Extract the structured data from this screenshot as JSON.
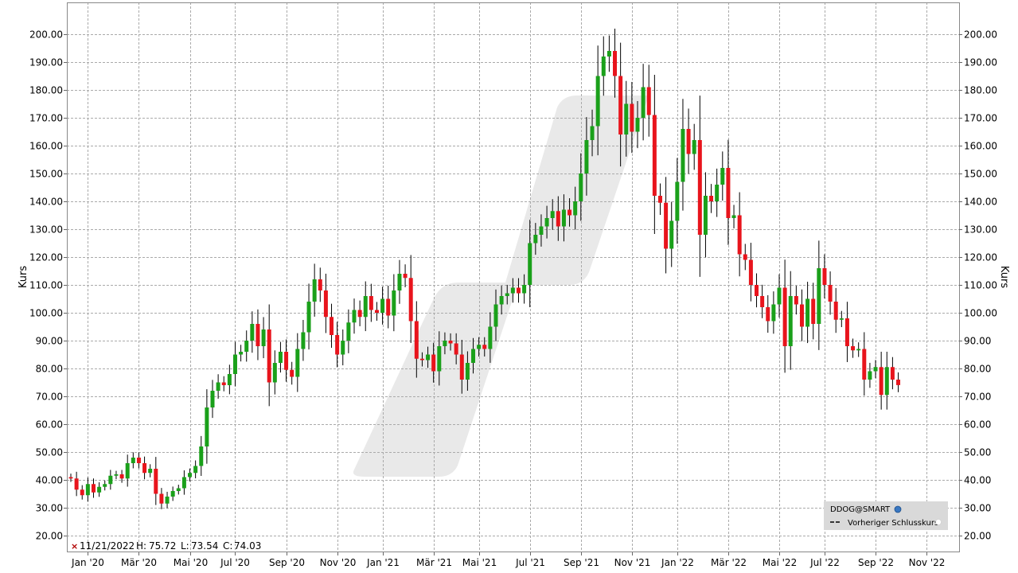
{
  "chart_data": {
    "type": "candlestick",
    "ylabel": "Kurs",
    "ylim": [
      15,
      205
    ],
    "y_ticks": [
      "20.00",
      "30.00",
      "40.00",
      "50.00",
      "60.00",
      "70.00",
      "80.00",
      "90.00",
      "100.00",
      "110.00",
      "120.00",
      "130.00",
      "140.00",
      "150.00",
      "160.00",
      "170.00",
      "180.00",
      "190.00",
      "200.00"
    ],
    "x_ticks": [
      {
        "label": "Jan '20",
        "week": 3
      },
      {
        "label": "Mär '20",
        "week": 12
      },
      {
        "label": "Mai '20",
        "week": 21
      },
      {
        "label": "Jul '20",
        "week": 29
      },
      {
        "label": "Sep '20",
        "week": 38
      },
      {
        "label": "Nov '20",
        "week": 47
      },
      {
        "label": "Jan '21",
        "week": 55
      },
      {
        "label": "Mär '21",
        "week": 64
      },
      {
        "label": "Mai '21",
        "week": 72
      },
      {
        "label": "Jul '21",
        "week": 81
      },
      {
        "label": "Sep '21",
        "week": 90
      },
      {
        "label": "Nov '21",
        "week": 99
      },
      {
        "label": "Jan '22",
        "week": 107
      },
      {
        "label": "Mär '22",
        "week": 116
      },
      {
        "label": "Mai '22",
        "week": 125
      },
      {
        "label": "Jul '22",
        "week": 133
      },
      {
        "label": "Sep '22",
        "week": 142
      },
      {
        "label": "Nov '22",
        "week": 151
      }
    ],
    "candles_close": [
      40.5,
      36.5,
      34.5,
      38.5,
      35.5,
      37.5,
      38.5,
      41.5,
      42.0,
      40.5,
      46.0,
      48.0,
      46.0,
      42.5,
      44.0,
      35.0,
      31.5,
      34.0,
      36.0,
      37.0,
      41.0,
      42.5,
      45.0,
      52.0,
      66.0,
      72.0,
      75.0,
      74.0,
      78.0,
      85.0,
      86.0,
      90.0,
      96.0,
      88.0,
      94.0,
      75.0,
      82.0,
      86.0,
      79.5,
      77.0,
      87.0,
      93.0,
      104.0,
      112.0,
      108.0,
      98.5,
      92.0,
      85.0,
      90.0,
      96.5,
      101.0,
      98.5,
      106.0,
      101.0,
      100.0,
      105.0,
      99.0,
      108.0,
      114.0,
      112.5,
      97.0,
      83.5,
      83.0,
      85.0,
      79.0,
      88.0,
      90.0,
      89.0,
      85.0,
      76.0,
      82.0,
      87.0,
      88.5,
      87.0,
      95.0,
      103.0,
      106.0,
      107.0,
      109.0,
      107.0,
      110.0,
      125.0,
      128.0,
      131.0,
      134.0,
      136.5,
      131.0,
      137.0,
      135.0,
      140.0,
      150.0,
      162.0,
      167.0,
      185.0,
      192.0,
      194.0,
      185.0,
      164.0,
      175.0,
      165.0,
      170.0,
      181.0,
      171.0,
      142.0,
      139.5,
      123.0,
      133.0,
      147.0,
      166.0,
      157.0,
      162.0,
      128.0,
      142.0,
      140.0,
      146.0,
      152.0,
      134.0,
      135.0,
      121.0,
      119.0,
      110.0,
      106.0,
      102.0,
      97.0,
      103.0,
      109.0,
      88.0,
      106.0,
      103.0,
      95.0,
      105.0,
      96.0,
      116.0,
      110.0,
      104.0,
      97.5,
      98.0,
      88.0,
      86.5,
      87.0,
      76.0,
      79.0,
      80.5,
      70.5,
      80.5,
      76.0,
      74.03
    ],
    "last_bar": {
      "date": "11/21/2022",
      "high": "75.72",
      "low": "73.54",
      "close": "74.03"
    }
  },
  "ohlc_readout": {
    "marker": "×",
    "date": "11/21/2022",
    "high_label": "H:",
    "high": "75.72",
    "low_label": "L:",
    "low": "73.54",
    "close_label": "C:",
    "close": "74.03"
  },
  "legend": {
    "symbol": "DDOG@SMART",
    "previous_close_label": "Vorheriger Schlusskurs"
  },
  "colors": {
    "up": "#1aa01a",
    "down": "#e8141c",
    "grid": "#aaaaaa",
    "watermark": "#e9e9e9",
    "legend_bg": "#d9d9d9"
  }
}
